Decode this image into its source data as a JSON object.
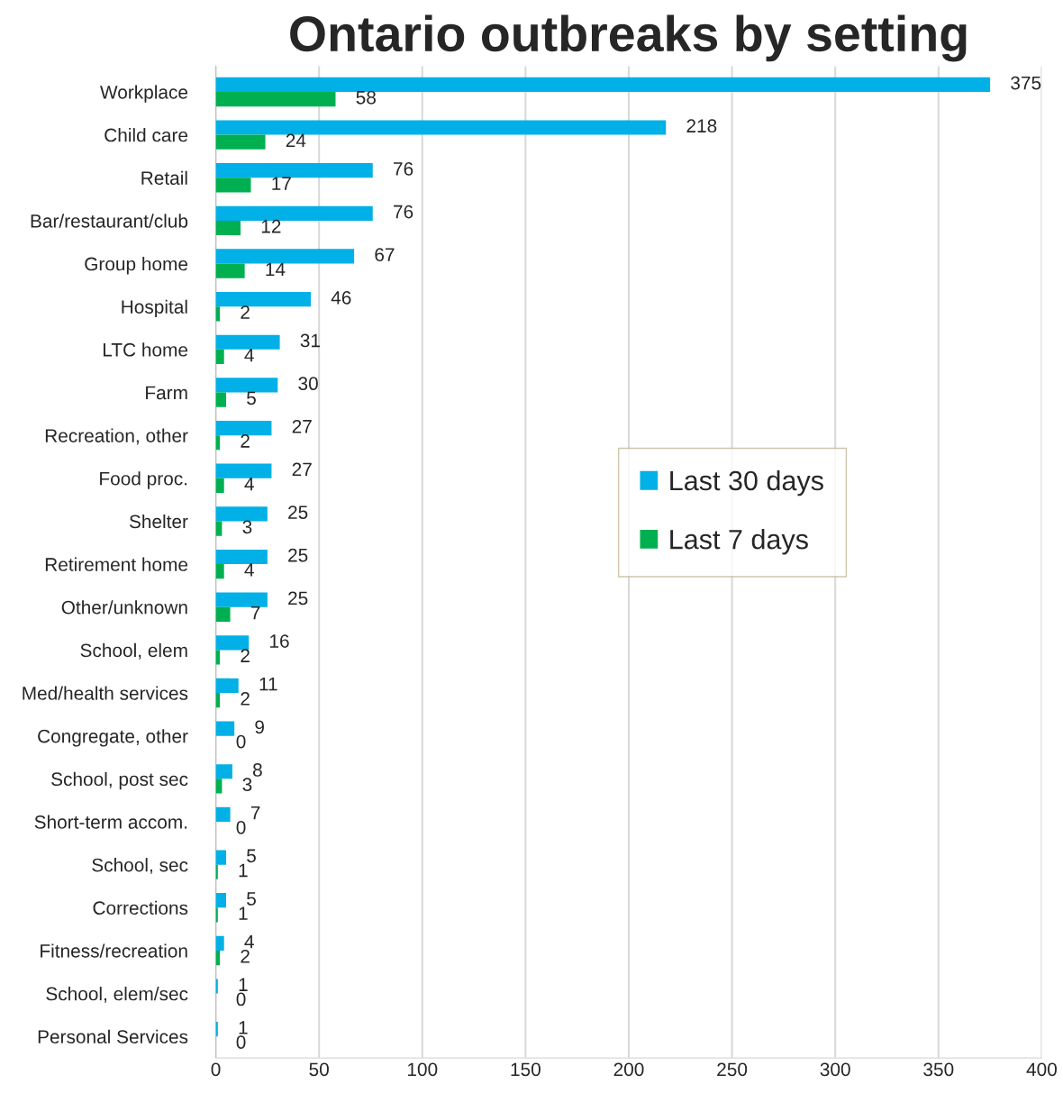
{
  "chart_data": {
    "type": "bar",
    "title": "Ontario outbreaks by setting",
    "orientation": "horizontal",
    "categories": [
      "Workplace",
      "Child care",
      "Retail",
      "Bar/restaurant/club",
      "Group home",
      "Hospital",
      "LTC home",
      "Farm",
      "Recreation, other",
      "Food proc.",
      "Shelter",
      "Retirement home",
      "Other/unknown",
      "School, elem",
      "Med/health services",
      "Congregate, other",
      "School, post sec",
      "Short-term accom.",
      "School, sec",
      "Corrections",
      "Fitness/recreation",
      "School, elem/sec",
      "Personal Services"
    ],
    "series": [
      {
        "name": "Last 30 days",
        "color": "#00b0e6",
        "values": [
          375,
          218,
          76,
          76,
          67,
          46,
          31,
          30,
          27,
          27,
          25,
          25,
          25,
          16,
          11,
          9,
          8,
          7,
          5,
          5,
          4,
          1,
          1
        ]
      },
      {
        "name": "Last 7 days",
        "color": "#00b050",
        "values": [
          58,
          24,
          17,
          12,
          14,
          2,
          4,
          5,
          2,
          4,
          3,
          4,
          7,
          2,
          2,
          0,
          3,
          0,
          1,
          1,
          2,
          0,
          0
        ]
      }
    ],
    "xlim": [
      0,
      400
    ],
    "xticks": [
      0,
      50,
      100,
      150,
      200,
      250,
      300,
      350,
      400
    ],
    "grid": "x",
    "legend": "right",
    "data_labels": true
  }
}
